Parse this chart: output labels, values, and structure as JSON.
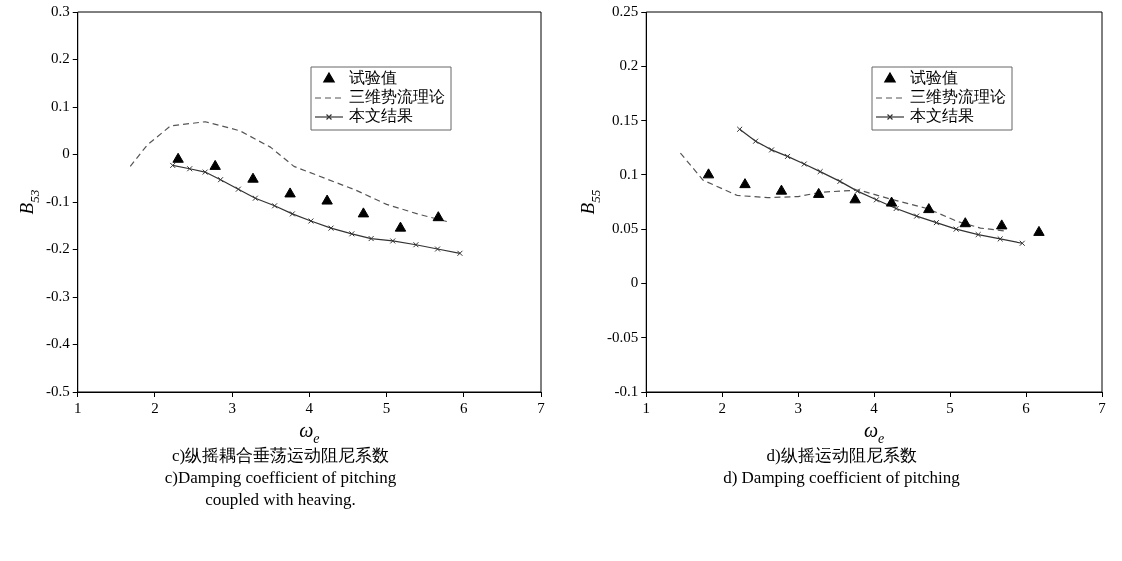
{
  "chart_data": [
    {
      "type": "line",
      "title": "c)纵摇耦合垂荡运动阻尼系数",
      "subtitle": "c)Damping coefficient of pitching coupled with heaving.",
      "xlabel": "ω$_{e}$",
      "ylabel": "B$_{53}$",
      "xlim": [
        1,
        7
      ],
      "xticks": [
        1,
        2,
        3,
        4,
        5,
        6,
        7
      ],
      "ylim": [
        -0.5,
        0.3
      ],
      "yticks": [
        -0.5,
        -0.4,
        -0.3,
        -0.2,
        -0.1,
        0,
        0.1,
        0.2,
        0.3
      ],
      "grid": false,
      "legend": "top right",
      "series": [
        {
          "name": "试验值",
          "type": "scatter",
          "marker": "triangle",
          "color": "#000000",
          "x": [
            2.3,
            2.78,
            3.27,
            3.75,
            4.23,
            4.7,
            5.18,
            5.67
          ],
          "values": [
            -0.01,
            -0.025,
            -0.052,
            -0.083,
            -0.098,
            -0.125,
            -0.155,
            -0.133
          ]
        },
        {
          "name": "三维势流理论",
          "type": "line",
          "marker": "none",
          "line_style": "dashed",
          "color": "#555555",
          "x": [
            1.68,
            1.9,
            2.2,
            2.65,
            3.1,
            3.5,
            3.8,
            4.2,
            4.6,
            5.0,
            5.4,
            5.8
          ],
          "values": [
            -0.025,
            0.02,
            0.06,
            0.069,
            0.05,
            0.015,
            -0.025,
            -0.05,
            -0.075,
            -0.105,
            -0.125,
            -0.142
          ]
        },
        {
          "name": "本文结果",
          "type": "line",
          "marker": "cross",
          "line_style": "solid",
          "color": "#333333",
          "x": [
            2.23,
            2.45,
            2.65,
            2.85,
            3.08,
            3.3,
            3.55,
            3.78,
            4.02,
            4.28,
            4.55,
            4.8,
            5.08,
            5.38,
            5.66,
            5.95
          ],
          "values": [
            -0.023,
            -0.03,
            -0.037,
            -0.053,
            -0.073,
            -0.092,
            -0.108,
            -0.125,
            -0.14,
            -0.155,
            -0.167,
            -0.177,
            -0.182,
            -0.19,
            -0.199,
            -0.208
          ]
        }
      ]
    },
    {
      "type": "line",
      "title": "d)纵摇运动阻尼系数",
      "subtitle": "d) Damping coefficient of pitching",
      "xlabel": "ω$_{e}$",
      "ylabel": "B$_{55}$",
      "xlim": [
        1,
        7
      ],
      "xticks": [
        1,
        2,
        3,
        4,
        5,
        6,
        7
      ],
      "ylim": [
        -0.1,
        0.25
      ],
      "yticks": [
        -0.1,
        -0.05,
        0,
        0.05,
        0.1,
        0.15,
        0.2,
        0.25
      ],
      "grid": false,
      "legend": "top right",
      "series": [
        {
          "name": "试验值",
          "type": "scatter",
          "marker": "triangle",
          "color": "#000000",
          "x": [
            1.82,
            2.3,
            2.78,
            3.27,
            3.75,
            4.23,
            4.72,
            5.2,
            5.68,
            6.17
          ],
          "values": [
            0.1,
            0.091,
            0.085,
            0.082,
            0.077,
            0.074,
            0.068,
            0.055,
            0.053,
            0.047
          ]
        },
        {
          "name": "三维势流理论",
          "type": "line",
          "marker": "none",
          "line_style": "dashed",
          "color": "#555555",
          "x": [
            1.45,
            1.75,
            2.2,
            2.6,
            3.0,
            3.3,
            3.8,
            4.2,
            4.7,
            5.1,
            5.4,
            5.75
          ],
          "values": [
            0.12,
            0.095,
            0.081,
            0.079,
            0.08,
            0.084,
            0.086,
            0.078,
            0.069,
            0.057,
            0.051,
            0.048
          ]
        },
        {
          "name": "本文结果",
          "type": "line",
          "marker": "cross",
          "line_style": "solid",
          "color": "#333333",
          "x": [
            2.23,
            2.44,
            2.65,
            2.86,
            3.08,
            3.29,
            3.55,
            3.78,
            4.03,
            4.29,
            4.56,
            4.82,
            5.08,
            5.37,
            5.66,
            5.95
          ],
          "values": [
            0.142,
            0.131,
            0.123,
            0.117,
            0.11,
            0.103,
            0.094,
            0.085,
            0.077,
            0.069,
            0.062,
            0.056,
            0.05,
            0.045,
            0.041,
            0.037
          ]
        }
      ]
    }
  ]
}
